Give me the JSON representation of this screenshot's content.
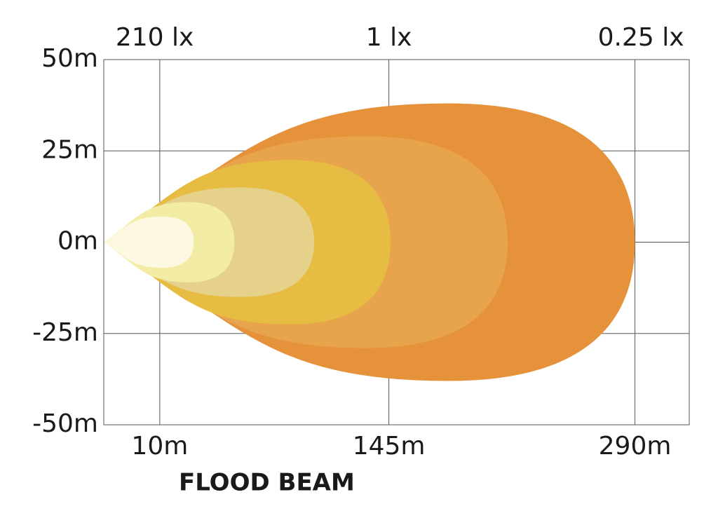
{
  "chart_data": {
    "type": "beam",
    "title": "FLOOD BEAM",
    "top_labels": [
      "210 lx",
      "1 lx",
      "0.25 lx"
    ],
    "xlim": [
      -23,
      322
    ],
    "xticks": [
      {
        "value": 10,
        "label": "10m"
      },
      {
        "value": 145,
        "label": "145m"
      },
      {
        "value": 290,
        "label": "290m"
      }
    ],
    "ylim": [
      -50,
      50
    ],
    "yticks": [
      {
        "value": 50,
        "label": "50m"
      },
      {
        "value": 25,
        "label": "25m"
      },
      {
        "value": 0,
        "label": "0m"
      },
      {
        "value": -25,
        "label": "-25m"
      },
      {
        "value": -50,
        "label": "-50m"
      }
    ],
    "grid": true,
    "series": [
      {
        "color": "#e5923a",
        "reach": 290,
        "half_width": 38
      },
      {
        "color": "#e8a44c",
        "reach": 215,
        "half_width": 29
      },
      {
        "color": "#e7bc42",
        "reach": 146,
        "half_width": 22.5
      },
      {
        "color": "#e6d18b",
        "reach": 101,
        "half_width": 15
      },
      {
        "color": "#f3eca5",
        "reach": 54,
        "half_width": 11
      },
      {
        "color": "#fdf8e2",
        "reach": 30,
        "half_width": 7
      }
    ]
  }
}
